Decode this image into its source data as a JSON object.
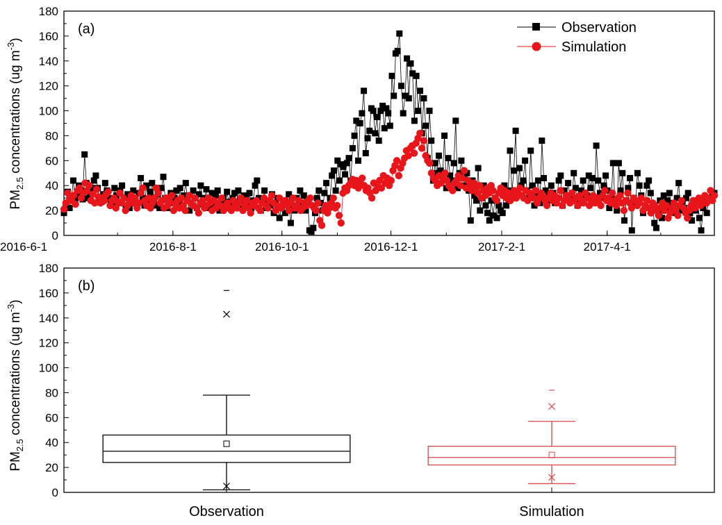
{
  "chart_data": [
    {
      "type": "line",
      "panel_label": "(a)",
      "ylabel": {
        "prefix": "PM",
        "sub": "2.5",
        "middle": " concentrations (ug m",
        "sup": "-3",
        "suffix": ")"
      },
      "ylim": [
        0,
        180
      ],
      "yticks": [
        0,
        20,
        40,
        60,
        80,
        100,
        120,
        140,
        160,
        180
      ],
      "x_start": "2016-6-1",
      "x_end": "2017-5-31",
      "xtick_labels": [
        "2016-6-1",
        "2016-8-1",
        "2016-10-1",
        "2016-12-1",
        "2017-2-1",
        "2017-4-1"
      ],
      "legend_position": "top-right",
      "series": [
        {
          "name": "Observation",
          "color": "#000000",
          "marker": "square",
          "values": [
            18,
            25,
            35,
            22,
            30,
            44,
            28,
            33,
            40,
            36,
            29,
            65,
            42,
            30,
            35,
            38,
            44,
            48,
            38,
            30,
            27,
            33,
            42,
            36,
            30,
            28,
            24,
            38,
            32,
            26,
            36,
            40,
            30,
            24,
            33,
            22,
            28,
            36,
            30,
            25,
            34,
            46,
            30,
            24,
            40,
            28,
            35,
            42,
            30,
            24,
            33,
            22,
            38,
            47,
            30,
            22,
            28,
            34,
            26,
            30,
            36,
            27,
            38,
            24,
            32,
            42,
            28,
            20,
            26,
            36,
            30,
            22,
            33,
            40,
            25,
            30,
            37,
            22,
            28,
            34,
            25,
            32,
            36,
            20,
            28,
            30,
            22,
            35,
            27,
            24,
            30,
            34,
            26,
            36,
            28,
            22,
            32,
            30,
            24,
            34,
            22,
            28,
            40,
            44,
            30,
            20,
            26,
            36,
            22,
            28,
            24,
            33,
            18,
            26,
            30,
            14,
            22,
            28,
            18,
            26,
            33,
            10,
            24,
            20,
            30,
            22,
            36,
            26,
            32,
            20,
            28,
            4,
            3,
            6,
            18,
            30,
            36,
            26,
            20,
            34,
            42,
            22,
            30,
            48,
            52,
            36,
            60,
            44,
            57,
            55,
            49,
            58,
            62,
            44,
            70,
            80,
            92,
            60,
            90,
            98,
            116,
            66,
            78,
            84,
            102,
            100,
            82,
            95,
            76,
            100,
            104,
            86,
            102,
            98,
            88,
            128,
            112,
            146,
            148,
            162,
            120,
            98,
            112,
            142,
            110,
            138,
            130,
            92,
            128,
            100,
            116,
            82,
            110,
            88,
            62,
            100,
            76,
            44,
            58,
            50,
            64,
            52,
            48,
            80,
            38,
            62,
            48,
            44,
            58,
            92,
            38,
            50,
            60,
            46,
            40,
            50,
            36,
            12,
            44,
            32,
            28,
            54,
            20,
            30,
            40,
            24,
            18,
            12,
            28,
            16,
            30,
            14,
            24,
            20,
            18,
            40,
            24,
            36,
            68,
            34,
            52,
            84,
            32,
            54,
            40,
            44,
            60,
            36,
            30,
            68,
            40,
            24,
            32,
            44,
            26,
            76,
            46,
            36,
            32,
            28,
            40,
            34,
            26,
            30,
            44,
            48,
            24,
            36,
            32,
            42,
            30,
            28,
            50,
            38,
            24,
            26,
            36,
            44,
            30,
            32,
            48,
            38,
            46,
            28,
            72,
            44,
            34,
            30,
            40,
            48,
            36,
            22,
            30,
            58,
            26,
            20,
            58,
            36,
            50,
            12,
            28,
            38,
            46,
            4,
            30,
            26,
            50,
            40,
            32,
            18,
            24,
            40,
            44,
            34,
            24,
            10,
            6,
            18,
            28,
            14,
            32,
            22,
            28,
            34,
            24,
            26,
            18,
            30,
            42,
            20,
            26,
            22,
            30,
            34,
            18,
            12,
            26,
            20,
            28,
            14,
            4,
            22,
            26,
            18,
            30,
            28,
            32,
            34
          ]
        },
        {
          "name": "Simulation",
          "color": "#e8161b",
          "marker": "circle",
          "values": [
            21,
            26,
            34,
            30,
            28,
            32,
            25,
            36,
            38,
            30,
            34,
            42,
            36,
            40,
            28,
            33,
            26,
            37,
            31,
            26,
            30,
            28,
            33,
            35,
            24,
            28,
            30,
            22,
            27,
            34,
            26,
            30,
            20,
            24,
            28,
            32,
            26,
            30,
            22,
            26,
            34,
            38,
            28,
            24,
            30,
            22,
            26,
            30,
            38,
            34,
            26,
            28,
            22,
            30,
            24,
            27,
            32,
            20,
            25,
            28,
            22,
            30,
            24,
            20,
            28,
            32,
            26,
            24,
            30,
            22,
            18,
            26,
            28,
            22,
            24,
            30,
            26,
            20,
            28,
            22,
            26,
            24,
            30,
            20,
            24,
            26,
            22,
            20,
            28,
            24,
            22,
            26,
            30,
            20,
            24,
            28,
            22,
            18,
            26,
            24,
            28,
            22,
            20,
            26,
            30,
            24,
            22,
            28,
            32,
            26,
            20,
            24,
            30,
            22,
            26,
            28,
            24,
            20,
            26,
            30,
            22,
            24,
            28,
            20,
            22,
            26,
            24,
            28,
            30,
            24,
            22,
            20,
            26,
            12,
            8,
            20,
            24,
            18,
            22,
            26,
            30,
            22,
            24,
            16,
            10,
            34,
            38,
            36,
            40,
            42,
            45,
            40,
            44,
            38,
            42,
            46,
            40,
            36,
            38,
            34,
            30,
            42,
            36,
            40,
            44,
            38,
            48,
            42,
            46,
            40,
            44,
            52,
            56,
            60,
            48,
            54,
            58,
            62,
            68,
            64,
            70,
            72,
            66,
            74,
            78,
            82,
            70,
            76,
            64,
            60,
            58,
            50,
            46,
            44,
            40,
            48,
            42,
            46,
            50,
            44,
            40,
            38,
            36,
            42,
            44,
            48,
            40,
            46,
            52,
            38,
            44,
            40,
            36,
            42,
            38,
            34,
            40,
            30,
            36,
            32,
            38,
            34,
            40,
            36,
            30,
            28,
            34,
            38,
            32,
            36,
            30,
            34,
            28,
            32,
            36,
            30,
            34,
            38,
            32,
            30,
            36,
            28,
            34,
            32,
            30,
            36,
            26,
            30,
            34,
            32,
            28,
            24,
            30,
            34,
            28,
            32,
            26,
            30,
            36,
            24,
            28,
            32,
            30,
            26,
            34,
            28,
            30,
            24,
            32,
            28,
            26,
            34,
            30,
            24,
            28,
            32,
            26,
            30,
            28,
            24,
            32,
            36,
            28,
            30,
            26,
            34,
            28,
            24,
            30,
            32,
            26,
            20,
            28,
            34,
            26,
            22,
            30,
            28,
            24,
            26,
            30,
            20,
            24,
            28,
            22,
            18,
            26,
            24,
            20,
            16,
            22,
            26,
            20,
            24,
            14,
            18,
            22,
            26,
            20,
            16,
            24,
            28,
            22,
            18,
            14,
            20,
            24,
            28,
            22,
            26,
            30,
            24,
            28,
            32,
            26,
            30,
            36,
            28,
            32
          ]
        }
      ]
    },
    {
      "type": "box",
      "panel_label": "(b)",
      "ylabel": {
        "prefix": "PM",
        "sub": "2.5",
        "middle": " concentrations (ug m",
        "sup": "-3",
        "suffix": ")"
      },
      "ylim": [
        0,
        180
      ],
      "yticks": [
        0,
        20,
        40,
        60,
        80,
        100,
        120,
        140,
        160,
        180
      ],
      "categories": [
        "Observation",
        "Simulation"
      ],
      "boxes": [
        {
          "name": "Observation",
          "color": "#000000",
          "whisker_low": 2,
          "q1": 24,
          "median": 33,
          "q3": 46,
          "whisker_high": 78,
          "mean": 39,
          "p1": 5,
          "p99": 143,
          "max": 162
        },
        {
          "name": "Simulation",
          "color": "#d9484a",
          "whisker_low": 7,
          "q1": 22,
          "median": 28,
          "q3": 37,
          "whisker_high": 57,
          "mean": 30,
          "p1": 12,
          "p99": 69,
          "max": 82
        }
      ]
    }
  ]
}
